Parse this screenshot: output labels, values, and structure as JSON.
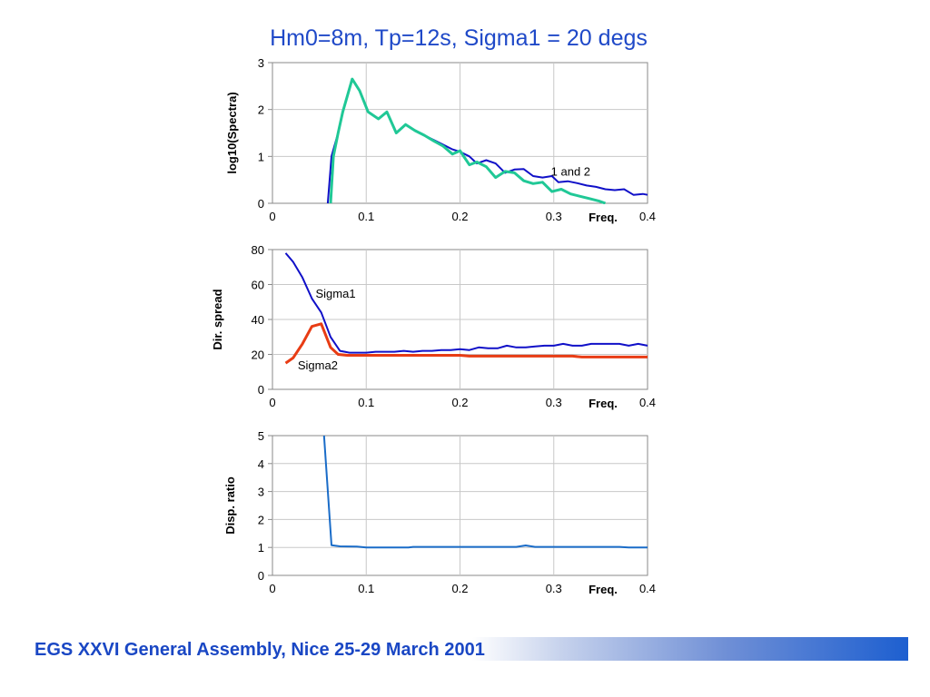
{
  "slide": {
    "title": "Hm0=8m, Tp=12s,  Sigma1 = 20 degs",
    "footer": "EGS XXVI General Assembly, Nice 25-29 March 2001",
    "title_color": "#1f49c8",
    "footer_color": "#1a47c4"
  },
  "chart_data": [
    {
      "type": "line",
      "ylabel": "log10(Spectra)",
      "xlabel": "Freq.",
      "xlim": [
        0,
        0.4
      ],
      "ylim": [
        0,
        3
      ],
      "x_ticks": [
        "0",
        "0.1",
        "0.2",
        "0.3",
        "0.4"
      ],
      "y_ticks": [
        "0",
        "1",
        "2",
        "3"
      ],
      "grid": true,
      "annotations": [
        {
          "text": "1 and 2",
          "x": 0.297,
          "y": 0.69
        }
      ],
      "series": [
        {
          "color": "#1010c8",
          "points": [
            [
              0.059,
              0
            ],
            [
              0.063,
              1.0
            ],
            [
              0.07,
              1.5
            ],
            [
              0.075,
              1.95
            ],
            [
              0.085,
              2.65
            ],
            [
              0.093,
              2.4
            ],
            [
              0.102,
              1.95
            ],
            [
              0.113,
              1.8
            ],
            [
              0.122,
              1.95
            ],
            [
              0.132,
              1.5
            ],
            [
              0.142,
              1.68
            ],
            [
              0.152,
              1.55
            ],
            [
              0.162,
              1.45
            ],
            [
              0.172,
              1.35
            ],
            [
              0.182,
              1.25
            ],
            [
              0.192,
              1.15
            ],
            [
              0.2,
              1.1
            ],
            [
              0.21,
              1.0
            ],
            [
              0.218,
              0.85
            ],
            [
              0.228,
              0.92
            ],
            [
              0.238,
              0.85
            ],
            [
              0.248,
              0.65
            ],
            [
              0.258,
              0.72
            ],
            [
              0.268,
              0.73
            ],
            [
              0.278,
              0.58
            ],
            [
              0.288,
              0.55
            ],
            [
              0.298,
              0.58
            ],
            [
              0.305,
              0.45
            ],
            [
              0.315,
              0.47
            ],
            [
              0.325,
              0.43
            ],
            [
              0.335,
              0.38
            ],
            [
              0.345,
              0.35
            ],
            [
              0.355,
              0.3
            ],
            [
              0.365,
              0.28
            ],
            [
              0.375,
              0.3
            ],
            [
              0.385,
              0.18
            ],
            [
              0.395,
              0.2
            ],
            [
              0.4,
              0.18
            ]
          ]
        },
        {
          "color": "#20c896",
          "points": [
            [
              0.062,
              0
            ],
            [
              0.065,
              1.0
            ],
            [
              0.07,
              1.5
            ],
            [
              0.075,
              1.95
            ],
            [
              0.085,
              2.65
            ],
            [
              0.093,
              2.4
            ],
            [
              0.102,
              1.95
            ],
            [
              0.113,
              1.8
            ],
            [
              0.122,
              1.95
            ],
            [
              0.132,
              1.5
            ],
            [
              0.142,
              1.68
            ],
            [
              0.152,
              1.55
            ],
            [
              0.162,
              1.45
            ],
            [
              0.172,
              1.33
            ],
            [
              0.182,
              1.22
            ],
            [
              0.192,
              1.05
            ],
            [
              0.2,
              1.12
            ],
            [
              0.21,
              0.82
            ],
            [
              0.218,
              0.88
            ],
            [
              0.228,
              0.78
            ],
            [
              0.238,
              0.55
            ],
            [
              0.248,
              0.68
            ],
            [
              0.258,
              0.65
            ],
            [
              0.268,
              0.48
            ],
            [
              0.278,
              0.42
            ],
            [
              0.288,
              0.45
            ],
            [
              0.298,
              0.25
            ],
            [
              0.308,
              0.3
            ],
            [
              0.318,
              0.2
            ],
            [
              0.328,
              0.15
            ],
            [
              0.338,
              0.1
            ],
            [
              0.348,
              0.05
            ],
            [
              0.355,
              0
            ]
          ]
        }
      ]
    },
    {
      "type": "line",
      "ylabel": "Dir. spread",
      "xlabel": "Freq.",
      "xlim": [
        0,
        0.4
      ],
      "ylim": [
        0,
        80
      ],
      "x_ticks": [
        "0",
        "0.1",
        "0.2",
        "0.3",
        "0.4"
      ],
      "y_ticks": [
        "0",
        "20",
        "40",
        "60",
        "80"
      ],
      "grid": true,
      "series": [
        {
          "name": "Sigma1",
          "color": "#1010c8",
          "points": [
            [
              0.014,
              78
            ],
            [
              0.022,
              73
            ],
            [
              0.032,
              64
            ],
            [
              0.042,
              52
            ],
            [
              0.052,
              44
            ],
            [
              0.062,
              30
            ],
            [
              0.072,
              22
            ],
            [
              0.082,
              21
            ],
            [
              0.092,
              21
            ],
            [
              0.1,
              21
            ],
            [
              0.11,
              21.5
            ],
            [
              0.12,
              21.5
            ],
            [
              0.13,
              21.5
            ],
            [
              0.14,
              22
            ],
            [
              0.15,
              21.5
            ],
            [
              0.16,
              22
            ],
            [
              0.17,
              22
            ],
            [
              0.18,
              22.5
            ],
            [
              0.19,
              22.5
            ],
            [
              0.2,
              23
            ],
            [
              0.21,
              22.5
            ],
            [
              0.22,
              24
            ],
            [
              0.23,
              23.5
            ],
            [
              0.24,
              23.5
            ],
            [
              0.25,
              25
            ],
            [
              0.26,
              24
            ],
            [
              0.27,
              24
            ],
            [
              0.28,
              24.5
            ],
            [
              0.29,
              25
            ],
            [
              0.3,
              25
            ],
            [
              0.31,
              26
            ],
            [
              0.32,
              25
            ],
            [
              0.33,
              25
            ],
            [
              0.34,
              26
            ],
            [
              0.35,
              26
            ],
            [
              0.36,
              26
            ],
            [
              0.37,
              26
            ],
            [
              0.38,
              25
            ],
            [
              0.39,
              26
            ],
            [
              0.4,
              25
            ]
          ]
        },
        {
          "name": "Sigma2",
          "color": "#e83c14",
          "points": [
            [
              0.014,
              15
            ],
            [
              0.022,
              18
            ],
            [
              0.032,
              26
            ],
            [
              0.042,
              36
            ],
            [
              0.052,
              37.5
            ],
            [
              0.062,
              24
            ],
            [
              0.07,
              20
            ],
            [
              0.08,
              19.5
            ],
            [
              0.1,
              19.5
            ],
            [
              0.15,
              19.5
            ],
            [
              0.2,
              19.5
            ],
            [
              0.21,
              19
            ],
            [
              0.25,
              19
            ],
            [
              0.3,
              19
            ],
            [
              0.32,
              19
            ],
            [
              0.33,
              18.5
            ],
            [
              0.4,
              18.5
            ]
          ]
        }
      ],
      "annotations": [
        {
          "text": "Sigma1",
          "x": 0.046,
          "y": 55
        },
        {
          "text": "Sigma2",
          "x": 0.027,
          "y": 14
        }
      ]
    },
    {
      "type": "line",
      "ylabel": "Disp. ratio",
      "xlabel": "Freq.",
      "xlim": [
        0,
        0.4
      ],
      "ylim": [
        0,
        5
      ],
      "x_ticks": [
        "0",
        "0.1",
        "0.2",
        "0.3",
        "0.4"
      ],
      "y_ticks": [
        "0",
        "1",
        "2",
        "3",
        "4",
        "5"
      ],
      "grid": true,
      "series": [
        {
          "color": "#1a6cc8",
          "points": [
            [
              0.055,
              5
            ],
            [
              0.063,
              1.08
            ],
            [
              0.072,
              1.04
            ],
            [
              0.09,
              1.03
            ],
            [
              0.1,
              1.0
            ],
            [
              0.145,
              1.0
            ],
            [
              0.15,
              1.02
            ],
            [
              0.2,
              1.02
            ],
            [
              0.26,
              1.02
            ],
            [
              0.27,
              1.07
            ],
            [
              0.28,
              1.02
            ],
            [
              0.37,
              1.02
            ],
            [
              0.38,
              1.0
            ],
            [
              0.4,
              1.0
            ]
          ]
        }
      ]
    }
  ]
}
